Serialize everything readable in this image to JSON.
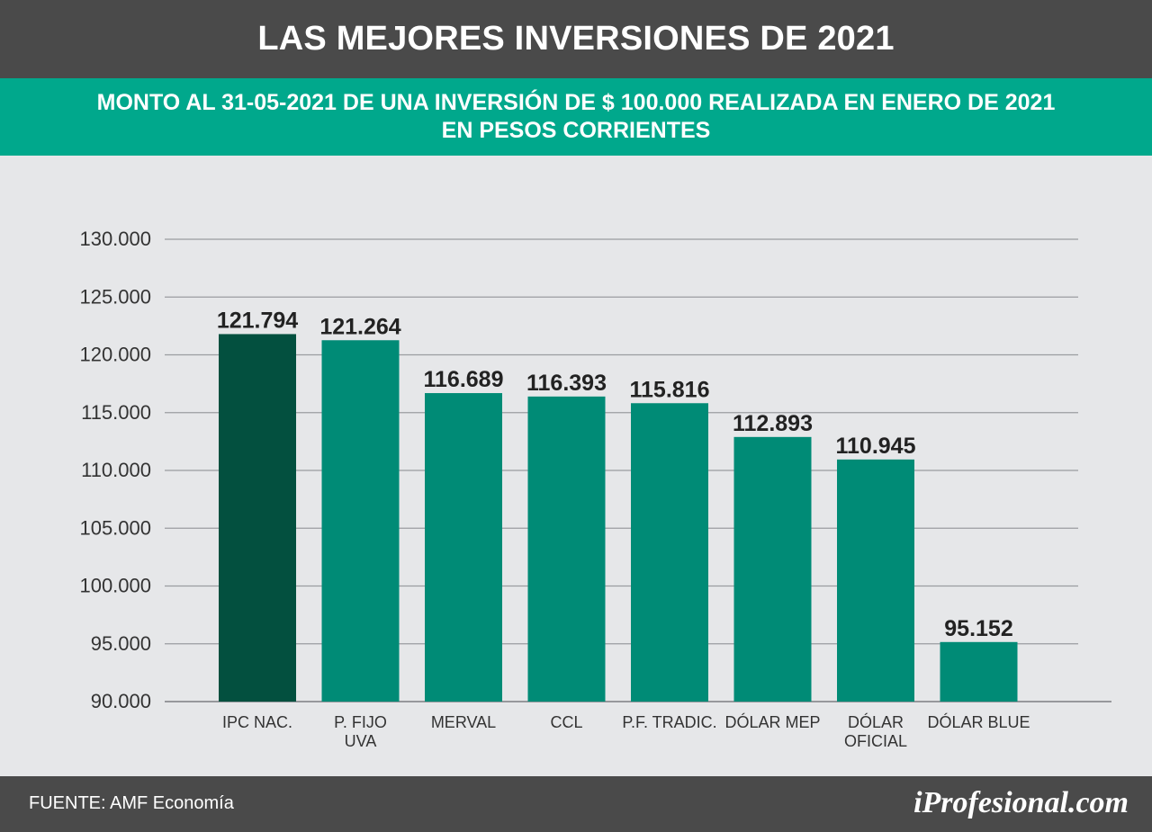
{
  "header": {
    "title": "LAS MEJORES INVERSIONES DE 2021",
    "subtitle_line1": "MONTO AL 31-05-2021 DE UNA INVERSIÓN DE $ 100.000 REALIZADA EN ENERO DE 2021",
    "subtitle_line2": "EN PESOS CORRIENTES"
  },
  "footer": {
    "source": "FUENTE: AMF Economía",
    "brand": "iProfesional.com"
  },
  "colors": {
    "highlight_bar": "#03503f",
    "bar": "#008b76",
    "grid": "#9a9ca0",
    "axis_text": "#333333",
    "value_label": "#222222"
  },
  "chart_data": {
    "type": "bar",
    "categories": [
      [
        "IPC NAC."
      ],
      [
        "P. FIJO",
        "UVA"
      ],
      [
        "MERVAL"
      ],
      [
        "CCL"
      ],
      [
        "P.F. TRADIC."
      ],
      [
        "DÓLAR MEP"
      ],
      [
        "DÓLAR",
        "OFICIAL"
      ],
      [
        "DÓLAR BLUE"
      ]
    ],
    "values": [
      121794,
      121264,
      116689,
      116393,
      115816,
      112893,
      110945,
      95152
    ],
    "value_labels": [
      "121.794",
      "121.264",
      "116.689",
      "116.393",
      "115.816",
      "112.893",
      "110.945",
      "95.152"
    ],
    "highlighted_index": 0,
    "ylim": [
      90000,
      130000
    ],
    "yticks": [
      90000,
      95000,
      100000,
      105000,
      110000,
      115000,
      120000,
      125000,
      130000
    ],
    "ytick_labels": [
      "90.000",
      "95.000",
      "100.000",
      "105.000",
      "110.000",
      "115.000",
      "120.000",
      "125.000",
      "130.000"
    ],
    "grid": true,
    "xlabel": "",
    "ylabel": ""
  }
}
